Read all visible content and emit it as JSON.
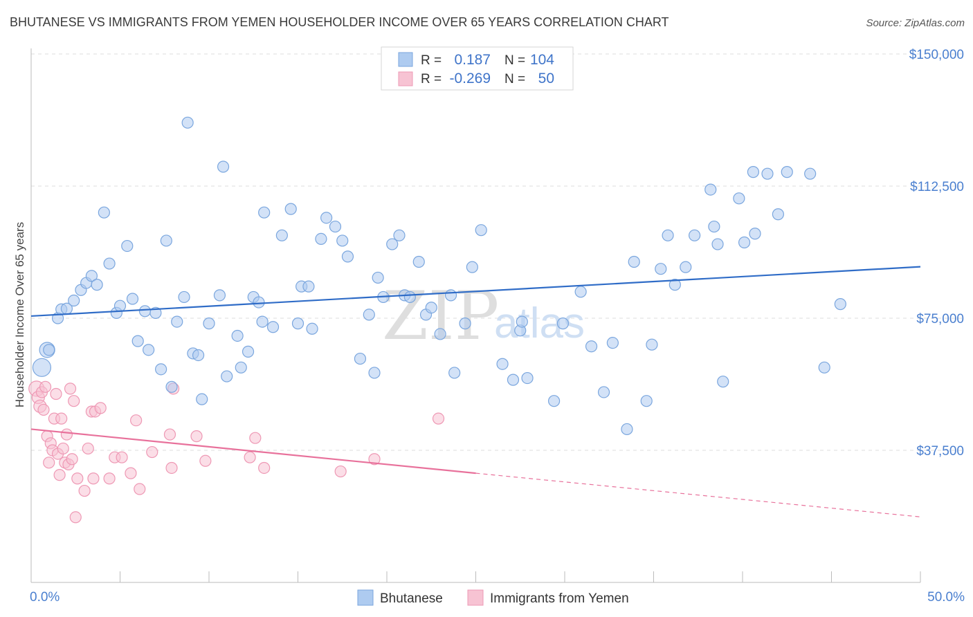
{
  "title": "BHUTANESE VS IMMIGRANTS FROM YEMEN HOUSEHOLDER INCOME OVER 65 YEARS CORRELATION CHART",
  "source": "Source: ZipAtlas.com",
  "watermark": {
    "zip": "ZIP",
    "atlas": "atlas"
  },
  "legend": {
    "rows": [
      {
        "r_label": "R =",
        "r_value": "0.187",
        "n_label": "N =",
        "n_value": "104"
      },
      {
        "r_label": "R =",
        "r_value": "-0.269",
        "n_label": "N =",
        "n_value": "50"
      }
    ]
  },
  "colors": {
    "blue_fill": "#aecbf0",
    "blue_stroke": "#7aa6de",
    "blue_line": "#2f6cc7",
    "pink_fill": "#f7c3d3",
    "pink_stroke": "#ee98b4",
    "pink_line": "#e8719b",
    "tick_text": "#4a7fcf",
    "grid": "#dddddd"
  },
  "chart_data": {
    "type": "scatter",
    "title": "BHUTANESE VS IMMIGRANTS FROM YEMEN HOUSEHOLDER INCOME OVER 65 YEARS CORRELATION CHART",
    "xlabel": "",
    "ylabel": "Householder Income Over 65 years",
    "xlim": [
      0,
      50
    ],
    "ylim": [
      0,
      155000
    ],
    "x_tick_labels": [
      "0.0%",
      "50.0%"
    ],
    "y_ticks": [
      37500,
      75000,
      112500,
      150000
    ],
    "y_tick_labels": [
      "$37,500",
      "$75,000",
      "$112,500",
      "$150,000"
    ],
    "grid": true,
    "legend_position": "top-center",
    "series": [
      {
        "name": "Bhutanese",
        "color": "#aecbf0",
        "trend": {
          "x": [
            0,
            50
          ],
          "y": [
            75600,
            89600
          ]
        },
        "points": [
          [
            0.6,
            61000,
            13
          ],
          [
            0.9,
            66000,
            11
          ],
          [
            1.0,
            66000,
            8
          ],
          [
            1.5,
            75000,
            8
          ],
          [
            1.7,
            77500,
            8
          ],
          [
            2.0,
            77700,
            8
          ],
          [
            2.4,
            80000,
            8
          ],
          [
            2.8,
            83000,
            8
          ],
          [
            3.1,
            85000,
            8
          ],
          [
            3.4,
            87000,
            8
          ],
          [
            3.7,
            84500,
            8
          ],
          [
            4.1,
            105000,
            8
          ],
          [
            4.4,
            90500,
            8
          ],
          [
            4.8,
            76500,
            8
          ],
          [
            5.0,
            78500,
            8
          ],
          [
            5.4,
            95500,
            8
          ],
          [
            5.7,
            80500,
            8
          ],
          [
            6.0,
            68500,
            8
          ],
          [
            6.4,
            77000,
            8
          ],
          [
            6.6,
            66000,
            8
          ],
          [
            7.0,
            76500,
            8
          ],
          [
            7.3,
            60500,
            8
          ],
          [
            7.6,
            97000,
            8
          ],
          [
            7.9,
            55500,
            8
          ],
          [
            8.2,
            74000,
            8
          ],
          [
            8.6,
            81000,
            8
          ],
          [
            8.8,
            130500,
            8
          ],
          [
            9.1,
            65000,
            8
          ],
          [
            9.4,
            64500,
            8
          ],
          [
            9.6,
            52000,
            8
          ],
          [
            10.0,
            73500,
            8
          ],
          [
            10.6,
            81500,
            8
          ],
          [
            10.8,
            118000,
            8
          ],
          [
            11.0,
            58500,
            8
          ],
          [
            11.6,
            70000,
            8
          ],
          [
            11.8,
            61000,
            8
          ],
          [
            12.2,
            65500,
            8
          ],
          [
            12.5,
            81000,
            8
          ],
          [
            12.8,
            79500,
            8
          ],
          [
            13.0,
            74000,
            8
          ],
          [
            13.1,
            105000,
            8
          ],
          [
            13.6,
            72500,
            8
          ],
          [
            14.1,
            98500,
            8
          ],
          [
            14.6,
            106000,
            8
          ],
          [
            15.0,
            73500,
            8
          ],
          [
            15.2,
            84000,
            8
          ],
          [
            15.6,
            84000,
            8
          ],
          [
            15.8,
            72000,
            8
          ],
          [
            16.3,
            97500,
            8
          ],
          [
            16.6,
            103500,
            8
          ],
          [
            17.1,
            101000,
            8
          ],
          [
            17.5,
            97000,
            8
          ],
          [
            17.8,
            92500,
            8
          ],
          [
            18.5,
            63500,
            8
          ],
          [
            19.0,
            76000,
            8
          ],
          [
            19.3,
            59500,
            8
          ],
          [
            19.5,
            86500,
            8
          ],
          [
            19.8,
            81000,
            8
          ],
          [
            20.3,
            96000,
            8
          ],
          [
            20.7,
            98500,
            8
          ],
          [
            21.0,
            81500,
            8
          ],
          [
            21.3,
            81000,
            8
          ],
          [
            21.8,
            91000,
            8
          ],
          [
            22.2,
            76000,
            8
          ],
          [
            22.5,
            78000,
            8
          ],
          [
            23.0,
            70500,
            8
          ],
          [
            23.6,
            81500,
            8
          ],
          [
            23.8,
            59500,
            8
          ],
          [
            24.4,
            73500,
            8
          ],
          [
            24.8,
            89500,
            8
          ],
          [
            25.3,
            100000,
            8
          ],
          [
            26.5,
            62000,
            8
          ],
          [
            27.1,
            57500,
            8
          ],
          [
            27.5,
            71500,
            8
          ],
          [
            27.6,
            74000,
            8
          ],
          [
            27.9,
            58000,
            8
          ],
          [
            29.4,
            51500,
            8
          ],
          [
            29.9,
            73500,
            8
          ],
          [
            30.9,
            82500,
            8
          ],
          [
            31.5,
            67000,
            8
          ],
          [
            32.2,
            54000,
            8
          ],
          [
            32.7,
            68000,
            8
          ],
          [
            33.5,
            43500,
            8
          ],
          [
            33.9,
            91000,
            8
          ],
          [
            34.6,
            51500,
            8
          ],
          [
            34.9,
            67500,
            8
          ],
          [
            35.4,
            89000,
            8
          ],
          [
            35.8,
            98500,
            8
          ],
          [
            36.2,
            84500,
            8
          ],
          [
            36.8,
            89500,
            8
          ],
          [
            37.3,
            98500,
            8
          ],
          [
            38.2,
            111500,
            8
          ],
          [
            38.4,
            101000,
            8
          ],
          [
            38.6,
            96000,
            8
          ],
          [
            38.9,
            57000,
            8
          ],
          [
            39.8,
            109000,
            8
          ],
          [
            40.1,
            96500,
            8
          ],
          [
            40.6,
            116500,
            8
          ],
          [
            40.7,
            99000,
            8
          ],
          [
            41.4,
            116000,
            8
          ],
          [
            42.0,
            104500,
            8
          ],
          [
            42.5,
            116500,
            8
          ],
          [
            43.8,
            116000,
            8
          ],
          [
            44.6,
            61000,
            8
          ],
          [
            45.5,
            79000,
            8
          ]
        ]
      },
      {
        "name": "Immigrants from Yemen",
        "color": "#f7c3d3",
        "trend": {
          "x": [
            0,
            25
          ],
          "y": [
            43500,
            31000
          ],
          "dashed_x": [
            25,
            50
          ],
          "dashed_y": [
            31000,
            18600
          ]
        },
        "points": [
          [
            0.3,
            55000,
            11
          ],
          [
            0.4,
            52500,
            9
          ],
          [
            0.5,
            50000,
            9
          ],
          [
            0.6,
            54000,
            8
          ],
          [
            0.7,
            49000,
            8
          ],
          [
            0.8,
            55500,
            8
          ],
          [
            0.9,
            41500,
            8
          ],
          [
            1.0,
            34000,
            8
          ],
          [
            1.1,
            39500,
            8
          ],
          [
            1.2,
            37500,
            8
          ],
          [
            1.3,
            46500,
            8
          ],
          [
            1.4,
            53500,
            8
          ],
          [
            1.5,
            36500,
            8
          ],
          [
            1.6,
            30500,
            8
          ],
          [
            1.7,
            46500,
            8
          ],
          [
            1.8,
            38000,
            8
          ],
          [
            1.9,
            34000,
            8
          ],
          [
            2.0,
            42000,
            8
          ],
          [
            2.1,
            33500,
            8
          ],
          [
            2.2,
            55000,
            8
          ],
          [
            2.3,
            35000,
            8
          ],
          [
            2.4,
            51500,
            8
          ],
          [
            2.5,
            18500,
            8
          ],
          [
            2.6,
            29500,
            8
          ],
          [
            3.0,
            26000,
            8
          ],
          [
            3.2,
            38000,
            8
          ],
          [
            3.4,
            48500,
            8
          ],
          [
            3.5,
            29500,
            8
          ],
          [
            3.6,
            48500,
            8
          ],
          [
            3.9,
            49500,
            8
          ],
          [
            4.4,
            29500,
            8
          ],
          [
            4.7,
            35500,
            8
          ],
          [
            5.1,
            35500,
            8
          ],
          [
            5.6,
            31000,
            8
          ],
          [
            5.9,
            46000,
            8
          ],
          [
            6.1,
            26500,
            8
          ],
          [
            6.8,
            37000,
            8
          ],
          [
            7.8,
            42000,
            8
          ],
          [
            7.9,
            32500,
            8
          ],
          [
            8.0,
            55000,
            8
          ],
          [
            9.3,
            41500,
            8
          ],
          [
            9.8,
            34500,
            8
          ],
          [
            12.3,
            35500,
            8
          ],
          [
            12.6,
            41000,
            8
          ],
          [
            13.1,
            32500,
            8
          ],
          [
            17.4,
            31500,
            8
          ],
          [
            19.3,
            35000,
            8
          ],
          [
            22.9,
            46500,
            8
          ]
        ]
      }
    ]
  }
}
